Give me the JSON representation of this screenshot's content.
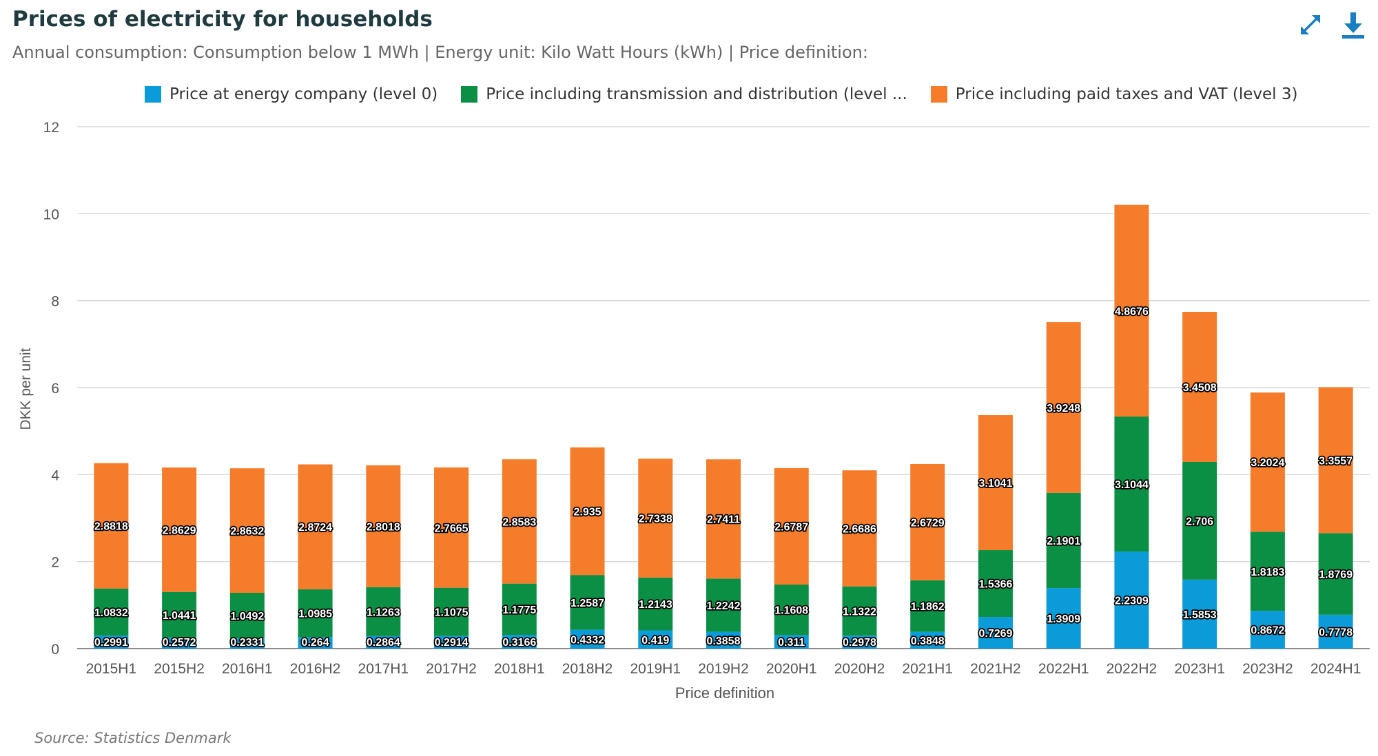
{
  "header": {
    "title": "Prices of electricity for households",
    "subtitle": "Annual consumption: Consumption below 1 MWh | Energy unit: Kilo Watt Hours (kWh) | Price definition:",
    "expand_icon": "expand-icon",
    "download_icon": "download-icon"
  },
  "legend": {
    "items": [
      {
        "label": "Price at energy company (level 0)",
        "color": "#0b9bd8"
      },
      {
        "label": "Price including transmission and distribution (level ...",
        "color": "#0a8f45"
      },
      {
        "label": "Price including paid taxes and VAT (level 3)",
        "color": "#f47c2a"
      }
    ]
  },
  "source": "Source: Statistics Denmark",
  "chart_data": {
    "type": "bar",
    "stacked": true,
    "xlabel": "Price definition",
    "ylabel": "DKK per unit",
    "ylim": [
      0,
      12
    ],
    "yticks": [
      0,
      2,
      4,
      6,
      8,
      10,
      12
    ],
    "grid": true,
    "legend_position": "top",
    "categories": [
      "2015H1",
      "2015H2",
      "2016H1",
      "2016H2",
      "2017H1",
      "2017H2",
      "2018H1",
      "2018H2",
      "2019H1",
      "2019H2",
      "2020H1",
      "2020H2",
      "2021H1",
      "2021H2",
      "2022H1",
      "2022H2",
      "2023H1",
      "2023H2",
      "2024H1"
    ],
    "series": [
      {
        "name": "Price at energy company (level 0)",
        "color": "#0b9bd8",
        "values": [
          0.2991,
          0.2572,
          0.2331,
          0.264,
          0.2864,
          0.2914,
          0.3166,
          0.4332,
          0.419,
          0.3858,
          0.311,
          0.2978,
          0.3848,
          0.7269,
          1.3909,
          2.2309,
          1.5853,
          0.8672,
          0.7778
        ]
      },
      {
        "name": "Price including transmission and distribution (level ...",
        "color": "#0a8f45",
        "values": [
          1.0832,
          1.0441,
          1.0492,
          1.0985,
          1.1263,
          1.1075,
          1.1775,
          1.2587,
          1.2143,
          1.2242,
          1.1608,
          1.1322,
          1.1862,
          1.5366,
          2.1901,
          3.1044,
          2.706,
          1.8183,
          1.8769
        ]
      },
      {
        "name": "Price including paid taxes and VAT (level 3)",
        "color": "#f47c2a",
        "values": [
          2.8818,
          2.8629,
          2.8632,
          2.8724,
          2.8018,
          2.7665,
          2.8583,
          2.935,
          2.7338,
          2.7411,
          2.6787,
          2.6686,
          2.6729,
          3.1041,
          3.9248,
          4.8676,
          3.4508,
          3.2024,
          3.3557
        ]
      }
    ]
  }
}
